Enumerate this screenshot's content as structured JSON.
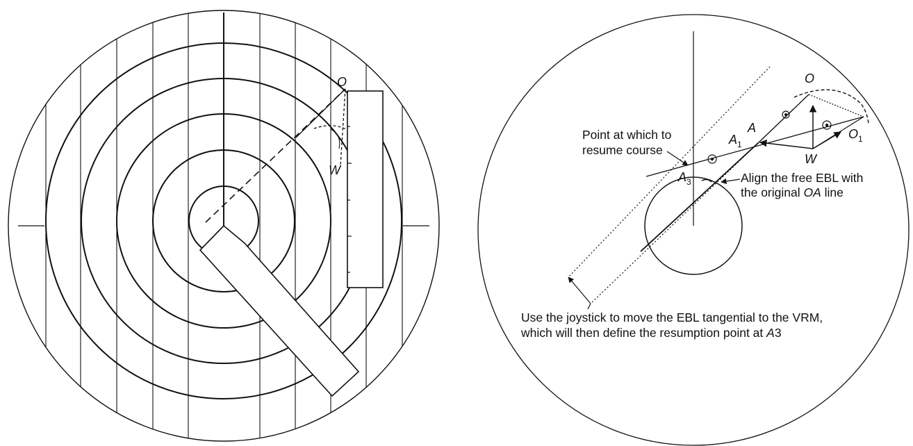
{
  "left_plotter": {
    "label_o": "O",
    "label_w": "W"
  },
  "right_radar": {
    "label_o": "O",
    "label_o1": "O",
    "label_o1_sub": "1",
    "label_a": "A",
    "label_a1": "A",
    "label_a1_sub": "1",
    "label_a3": "A",
    "label_a3_sub": "3",
    "label_w": "W",
    "note_resume": {
      "line1": "Point at which to",
      "line2": "resume course"
    },
    "note_align": {
      "line1": "Align the free EBL with",
      "line2_pre": "the original ",
      "line2_it": "OA",
      "line2_post": " line"
    },
    "note_joystick": {
      "line1": "Use the joystick to move the EBL tangential to the VRM,",
      "line2_pre": "which will then define the resumption point at ",
      "line2_it": "A",
      "line2_post": "3"
    }
  },
  "colors": {
    "ink": "#111111",
    "paper": "#ffffff"
  }
}
